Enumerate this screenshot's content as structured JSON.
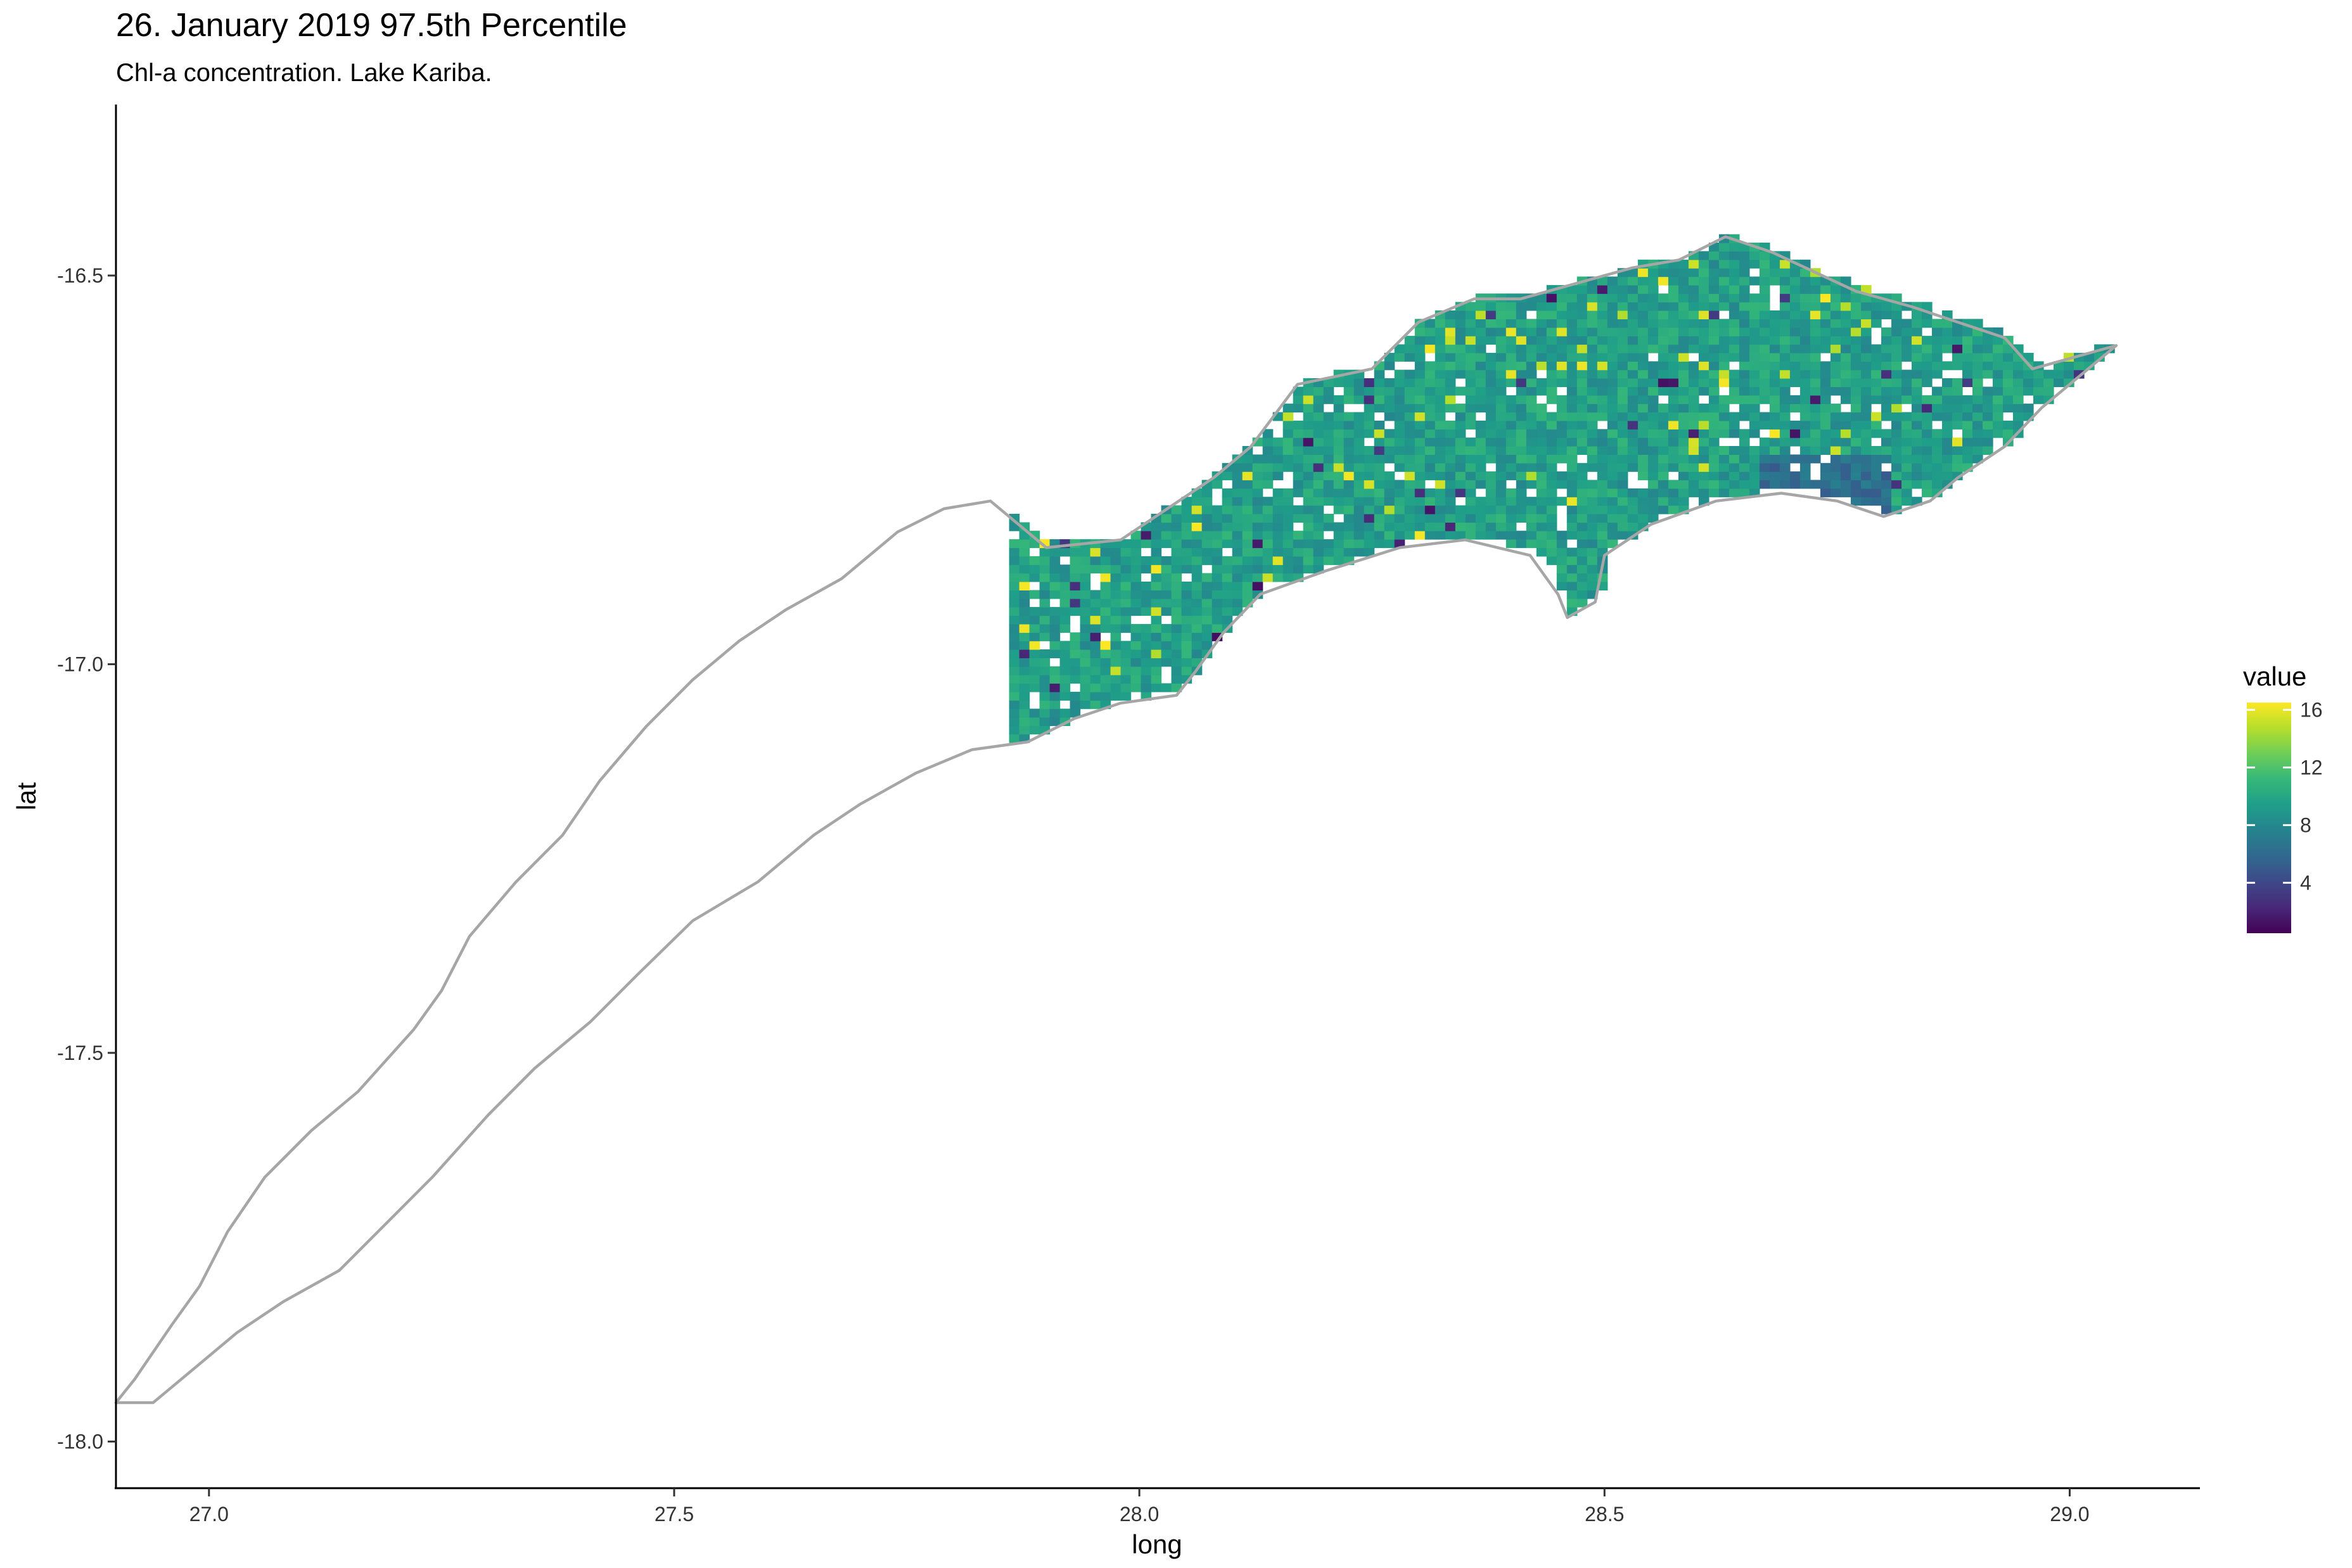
{
  "chart_data": {
    "type": "heatmap",
    "title": "26. January 2019 97.5th Percentile",
    "subtitle": "Chl-a concentration. Lake Kariba.",
    "xlabel": "long",
    "ylabel": "lat",
    "xlim": [
      26.9,
      29.14
    ],
    "ylim": [
      -18.06,
      -16.28
    ],
    "x_ticks": [
      27.0,
      27.5,
      28.0,
      28.5,
      29.0
    ],
    "x_tick_labels": [
      "27.0",
      "27.5",
      "28.0",
      "28.5",
      "29.0"
    ],
    "y_ticks": [
      -16.5,
      -17.0,
      -17.5,
      -18.0
    ],
    "y_tick_labels": [
      "-16.5",
      "-17.0",
      "-17.5",
      "-18.0"
    ],
    "grid": false,
    "legend": {
      "title": "value",
      "placement": "right",
      "breaks": [
        4,
        8,
        12,
        16
      ],
      "break_labels": [
        "4",
        "8",
        "12",
        "16"
      ],
      "range": [
        0.5,
        16.5
      ],
      "colormap": "viridis"
    },
    "colors": {
      "outline": "#a6a6a6",
      "viridis": [
        "#440154",
        "#482878",
        "#3e4989",
        "#31688e",
        "#26828e",
        "#1f9e89",
        "#35b779",
        "#6ece58",
        "#b5de2b",
        "#fde725"
      ]
    },
    "lake_outline": [
      [
        29.05,
        -16.59
      ],
      [
        28.96,
        -16.62
      ],
      [
        28.93,
        -16.58
      ],
      [
        28.88,
        -16.56
      ],
      [
        28.83,
        -16.54
      ],
      [
        28.77,
        -16.52
      ],
      [
        28.68,
        -16.47
      ],
      [
        28.63,
        -16.45
      ],
      [
        28.58,
        -16.48
      ],
      [
        28.53,
        -16.49
      ],
      [
        28.47,
        -16.51
      ],
      [
        28.41,
        -16.53
      ],
      [
        28.36,
        -16.53
      ],
      [
        28.3,
        -16.56
      ],
      [
        28.25,
        -16.62
      ],
      [
        28.17,
        -16.64
      ],
      [
        28.12,
        -16.72
      ],
      [
        28.08,
        -16.76
      ],
      [
        28.03,
        -16.8
      ],
      [
        27.98,
        -16.84
      ],
      [
        27.9,
        -16.85
      ],
      [
        27.84,
        -16.79
      ],
      [
        27.79,
        -16.8
      ],
      [
        27.74,
        -16.83
      ],
      [
        27.68,
        -16.89
      ],
      [
        27.62,
        -16.93
      ],
      [
        27.57,
        -16.97
      ],
      [
        27.52,
        -17.02
      ],
      [
        27.47,
        -17.08
      ],
      [
        27.42,
        -17.15
      ],
      [
        27.38,
        -17.22
      ],
      [
        27.33,
        -17.28
      ],
      [
        27.28,
        -17.35
      ],
      [
        27.25,
        -17.42
      ],
      [
        27.22,
        -17.47
      ],
      [
        27.16,
        -17.55
      ],
      [
        27.11,
        -17.6
      ],
      [
        27.06,
        -17.66
      ],
      [
        27.02,
        -17.73
      ],
      [
        26.99,
        -17.8
      ],
      [
        26.96,
        -17.85
      ],
      [
        26.92,
        -17.92
      ],
      [
        26.9,
        -17.95
      ],
      [
        26.94,
        -17.95
      ],
      [
        26.98,
        -17.91
      ],
      [
        27.03,
        -17.86
      ],
      [
        27.08,
        -17.82
      ],
      [
        27.14,
        -17.78
      ],
      [
        27.19,
        -17.72
      ],
      [
        27.24,
        -17.66
      ],
      [
        27.3,
        -17.58
      ],
      [
        27.35,
        -17.52
      ],
      [
        27.41,
        -17.46
      ],
      [
        27.46,
        -17.4
      ],
      [
        27.52,
        -17.33
      ],
      [
        27.59,
        -17.28
      ],
      [
        27.65,
        -17.22
      ],
      [
        27.7,
        -17.18
      ],
      [
        27.76,
        -17.14
      ],
      [
        27.82,
        -17.11
      ],
      [
        27.88,
        -17.1
      ],
      [
        27.93,
        -17.07
      ],
      [
        27.98,
        -17.05
      ],
      [
        28.04,
        -17.04
      ],
      [
        28.06,
        -17.01
      ],
      [
        28.09,
        -16.96
      ],
      [
        28.13,
        -16.91
      ],
      [
        28.2,
        -16.88
      ],
      [
        28.28,
        -16.85
      ],
      [
        28.35,
        -16.84
      ],
      [
        28.42,
        -16.86
      ],
      [
        28.45,
        -16.91
      ],
      [
        28.46,
        -16.94
      ],
      [
        28.49,
        -16.92
      ],
      [
        28.5,
        -16.86
      ],
      [
        28.55,
        -16.82
      ],
      [
        28.62,
        -16.79
      ],
      [
        28.69,
        -16.78
      ],
      [
        28.75,
        -16.79
      ],
      [
        28.8,
        -16.81
      ],
      [
        28.85,
        -16.79
      ],
      [
        28.88,
        -16.76
      ],
      [
        28.93,
        -16.72
      ],
      [
        28.97,
        -16.67
      ],
      [
        29.01,
        -16.63
      ]
    ]
  }
}
